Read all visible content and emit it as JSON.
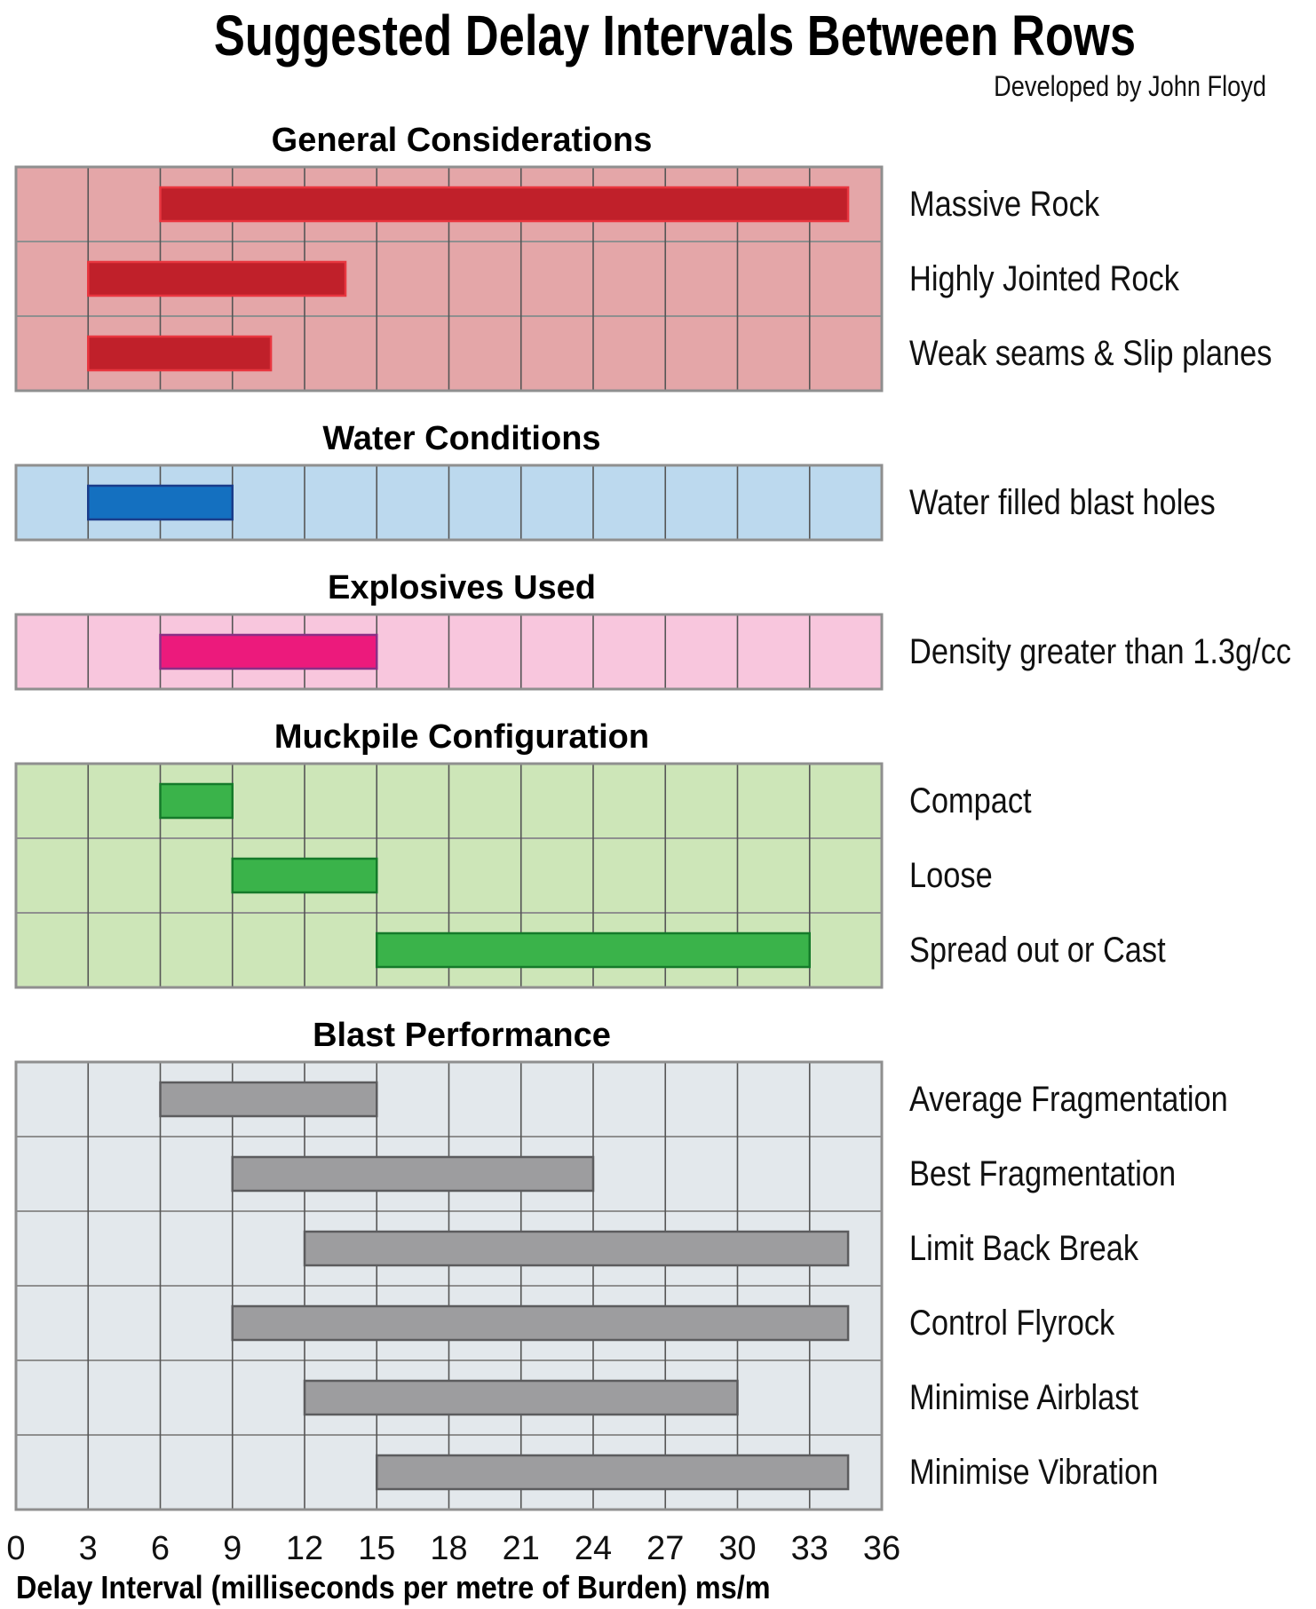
{
  "chart_data": {
    "type": "bar",
    "orientation": "horizontal-range",
    "title": "Suggested Delay Intervals Between Rows",
    "subtitle": "Developed by John Floyd",
    "xlabel": "Delay Interval (milliseconds per metre of Burden) ms/m",
    "xlim": [
      0,
      36
    ],
    "xticks": [
      0,
      3,
      6,
      9,
      12,
      15,
      18,
      21,
      24,
      27,
      30,
      33,
      36
    ],
    "grid": true,
    "panels": [
      {
        "title": "General Considerations",
        "bg_color": "#e4a6a8",
        "bar_color": "#c0202a",
        "bar_border": "#e8363f",
        "rows": [
          {
            "label": "Massive Rock",
            "start": 6,
            "end": 34.6
          },
          {
            "label": "Highly Jointed Rock",
            "start": 3,
            "end": 13.7
          },
          {
            "label": "Weak seams & Slip planes",
            "start": 3,
            "end": 10.6
          }
        ]
      },
      {
        "title": "Water Conditions",
        "bg_color": "#bcd9ee",
        "bar_color": "#1470c0",
        "bar_border": "#1a3c8a",
        "rows": [
          {
            "label": "Water filled blast holes",
            "start": 3,
            "end": 9
          }
        ]
      },
      {
        "title": "Explosives Used",
        "bg_color": "#f8c6dd",
        "bar_color": "#ec1a7c",
        "bar_border": "#8a2f86",
        "rows": [
          {
            "label": "Density greater than 1.3g/cc",
            "start": 6,
            "end": 15
          }
        ]
      },
      {
        "title": "Muckpile Configuration",
        "bg_color": "#cde6b8",
        "bar_color": "#3ab34a",
        "bar_border": "#157a2a",
        "rows": [
          {
            "label": "Compact",
            "start": 6,
            "end": 9
          },
          {
            "label": "Loose",
            "start": 9,
            "end": 15
          },
          {
            "label": "Spread out or Cast",
            "start": 15,
            "end": 33
          }
        ]
      },
      {
        "title": "Blast Performance",
        "bg_color": "#e3e8ec",
        "bar_color": "#9d9d9f",
        "bar_border": "#5c5c5e",
        "rows": [
          {
            "label": "Average Fragmentation",
            "start": 6,
            "end": 15
          },
          {
            "label": "Best Fragmentation",
            "start": 9,
            "end": 24
          },
          {
            "label": "Limit Back Break",
            "start": 12,
            "end": 34.6
          },
          {
            "label": "Control Flyrock",
            "start": 9,
            "end": 34.6
          },
          {
            "label": "Minimise Airblast",
            "start": 12,
            "end": 30
          },
          {
            "label": "Minimise Vibration",
            "start": 15,
            "end": 34.6
          }
        ]
      }
    ]
  }
}
